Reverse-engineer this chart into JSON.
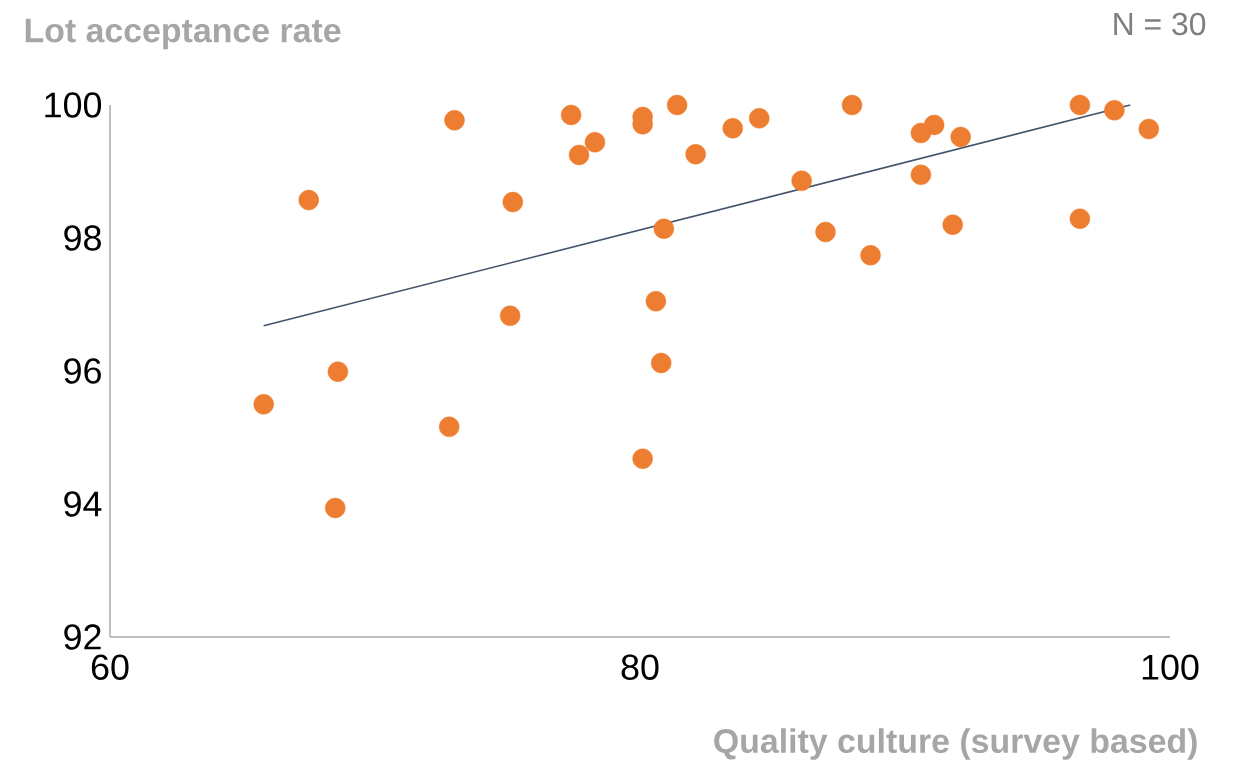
{
  "chart_data": {
    "type": "scatter",
    "ylabel": "Lot acceptance rate",
    "xlabel": "Quality culture (survey based)",
    "annotations": [
      "N = 30"
    ],
    "xlim": [
      60,
      100
    ],
    "ylim": [
      92,
      100
    ],
    "xticks": [
      60,
      80,
      100
    ],
    "yticks": [
      92,
      94,
      96,
      98,
      100
    ],
    "series": [
      {
        "color": "#ed7d31",
        "marker": "circle",
        "x": [
          65.8,
          67.5,
          68.6,
          68.5,
          73.0,
          72.8,
          75.2,
          75.1,
          77.4,
          77.7,
          78.3,
          80.1,
          80.1,
          80.1,
          80.6,
          80.8,
          80.9,
          81.4,
          82.1,
          83.5,
          84.5,
          86.1,
          87.0,
          88.0,
          88.7,
          90.6,
          90.6,
          91.1,
          92.1,
          91.8,
          96.6,
          96.6,
          97.9,
          99.2
        ],
        "values": [
          95.5,
          98.57,
          95.99,
          93.94,
          99.77,
          95.16,
          98.54,
          96.83,
          99.85,
          99.25,
          99.44,
          99.82,
          99.71,
          94.68,
          97.05,
          96.12,
          98.14,
          100.0,
          99.26,
          99.65,
          99.8,
          98.86,
          98.09,
          100.0,
          97.74,
          99.58,
          98.95,
          99.7,
          99.52,
          98.2,
          100.0,
          98.29,
          99.92,
          99.64
        ]
      },
      {
        "type": "line",
        "color": "#44546a",
        "marker": "none",
        "x": [
          65.8,
          98.5
        ],
        "values": [
          96.68,
          100.0
        ]
      }
    ]
  }
}
